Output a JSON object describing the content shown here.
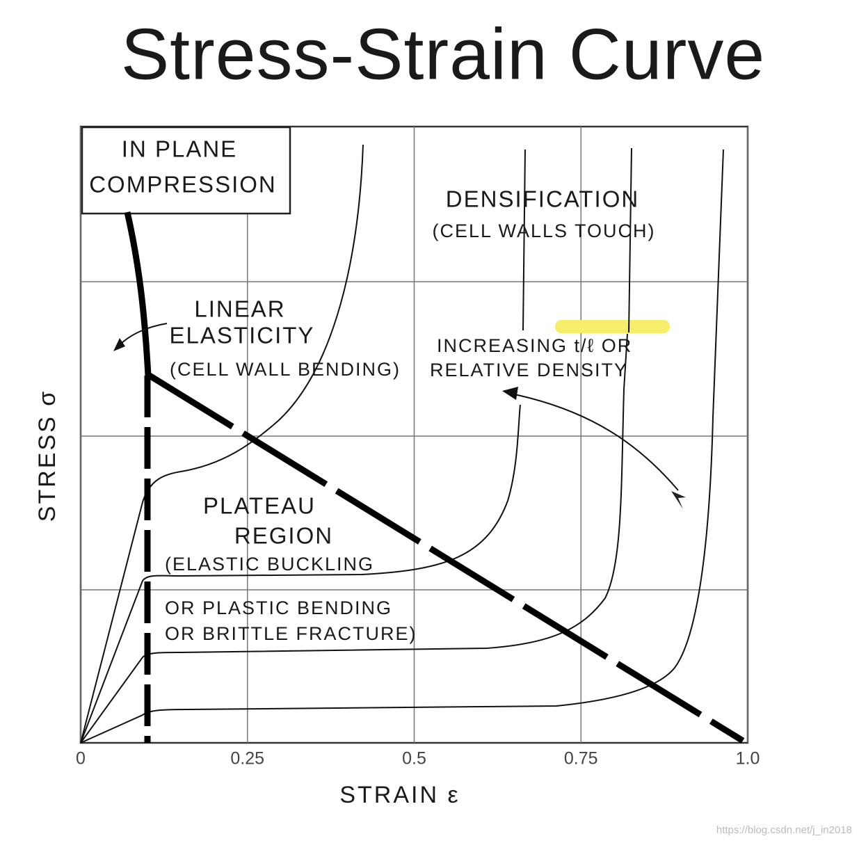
{
  "title": "Stress-Strain Curve",
  "mode_box": [
    "IN PLANE",
    "COMPRESSION"
  ],
  "regions": {
    "linear": [
      "LINEAR",
      "ELASTICITY",
      "(CELL WALL BENDING)"
    ],
    "plateau": [
      "PLATEAU",
      "REGION",
      "(ELASTIC BUCKLING",
      "OR PLASTIC BENDING",
      "OR BRITTLE FRACTURE)"
    ],
    "densification": [
      "DENSIFICATION",
      "(CELL WALLS TOUCH)"
    ],
    "increasing": [
      "INCREASING t/ℓ OR",
      "RELATIVE DENSITY"
    ]
  },
  "x_axis": {
    "label": "STRAIN ε",
    "ticks": [
      0,
      0.25,
      0.5,
      0.75,
      {
        "value": 1,
        "label": "1.0"
      }
    ],
    "lim": [
      0,
      1
    ]
  },
  "y_axis": {
    "label": "STRESS σ"
  },
  "watermark": "https://blog.csdn.net/j_in2018"
}
